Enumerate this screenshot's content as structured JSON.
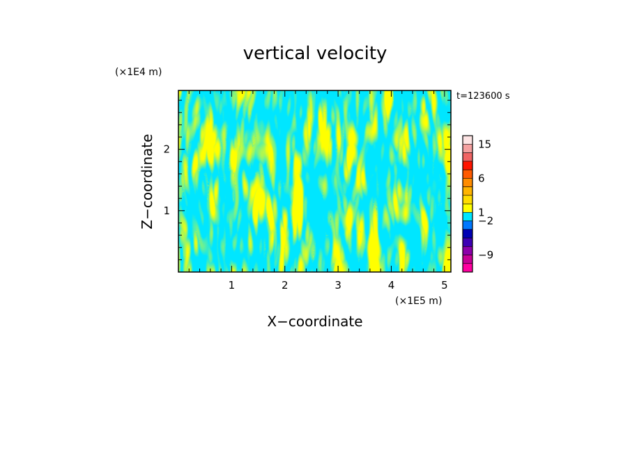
{
  "chart_data": {
    "type": "heatmap",
    "title": "vertical velocity",
    "xlabel": "X−coordinate",
    "ylabel": "Z−coordinate",
    "x_unit": "(×1E5 m)",
    "y_unit": "(×1E4 m)",
    "time_label": "t=123600 s",
    "xlim": [
      0,
      5.12
    ],
    "ylim": [
      0,
      2.96
    ],
    "x_ticks": [
      {
        "v": 1,
        "label": "1"
      },
      {
        "v": 2,
        "label": "2"
      },
      {
        "v": 3,
        "label": "3"
      },
      {
        "v": 4,
        "label": "4"
      },
      {
        "v": 5,
        "label": "5"
      }
    ],
    "y_ticks": [
      {
        "v": 1,
        "label": "1"
      },
      {
        "v": 2,
        "label": "2"
      }
    ],
    "colorbar": {
      "levels": [
        {
          "color": "#ff00a0"
        },
        {
          "color": "#c80096"
        },
        {
          "color": "#8c00aa"
        },
        {
          "color": "#3c00b4"
        },
        {
          "color": "#0000b4"
        },
        {
          "color": "#0078ff"
        },
        {
          "color": "#00e6ff"
        },
        {
          "color": "#ffff00"
        },
        {
          "color": "#ffdc00"
        },
        {
          "color": "#ffb400"
        },
        {
          "color": "#ff8c00"
        },
        {
          "color": "#ff5a00"
        },
        {
          "color": "#ff1400"
        },
        {
          "color": "#f06464"
        },
        {
          "color": "#f5a0a0"
        },
        {
          "color": "#fde4e4"
        }
      ],
      "labels": [
        {
          "at": 2,
          "label": "−9"
        },
        {
          "at": 6,
          "label": "−2"
        },
        {
          "at": 7,
          "label": "1"
        },
        {
          "at": 11,
          "label": "6"
        },
        {
          "at": 15,
          "label": "15"
        }
      ]
    },
    "colors": {
      "positive": "#ffff00",
      "negative": "#00e6ff",
      "frame": "#000000"
    }
  }
}
